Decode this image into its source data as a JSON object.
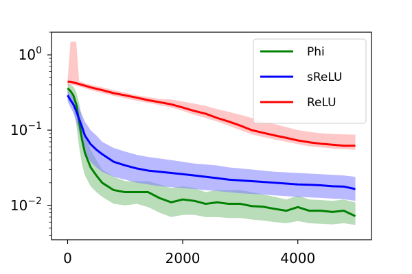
{
  "chart_data": {
    "type": "line",
    "title": "",
    "xlabel": "",
    "ylabel": "",
    "xlim": [
      -280,
      5280
    ],
    "ylim": [
      0.0035,
      2.0
    ],
    "yscale": "log",
    "grid": false,
    "legend_position": "top-right",
    "x_ticks": [
      {
        "value": 0,
        "label": "0"
      },
      {
        "value": 2000,
        "label": "2000"
      },
      {
        "value": 4000,
        "label": "4000"
      }
    ],
    "y_ticks": [
      {
        "value": 1,
        "label": "10^0",
        "base": "10",
        "exp": "0"
      },
      {
        "value": 0.1,
        "label": "10^-1",
        "base": "10",
        "exp": "−1"
      },
      {
        "value": 0.01,
        "label": "10^-2",
        "base": "10",
        "exp": "−2"
      }
    ],
    "series": [
      {
        "name": "Phi",
        "color": "#008000",
        "band_color": "#7fbf7f",
        "x": [
          0,
          50,
          100,
          150,
          200,
          250,
          300,
          400,
          500,
          600,
          800,
          1000,
          1200,
          1400,
          1600,
          1800,
          2000,
          2200,
          2400,
          2600,
          2800,
          3000,
          3200,
          3400,
          3600,
          3800,
          4000,
          4200,
          4400,
          4600,
          4800,
          5000
        ],
        "y": [
          0.36,
          0.33,
          0.29,
          0.22,
          0.13,
          0.075,
          0.05,
          0.032,
          0.025,
          0.02,
          0.016,
          0.015,
          0.015,
          0.015,
          0.0125,
          0.011,
          0.012,
          0.0115,
          0.0105,
          0.011,
          0.0105,
          0.0105,
          0.0098,
          0.0096,
          0.009,
          0.0085,
          0.0095,
          0.0085,
          0.0085,
          0.0082,
          0.0085,
          0.0072
        ],
        "lower": [
          0.3,
          0.26,
          0.2,
          0.12,
          0.06,
          0.035,
          0.025,
          0.018,
          0.015,
          0.013,
          0.0105,
          0.01,
          0.0105,
          0.0095,
          0.008,
          0.007,
          0.0075,
          0.0075,
          0.007,
          0.007,
          0.0068,
          0.0068,
          0.0065,
          0.0063,
          0.006,
          0.0058,
          0.0062,
          0.0058,
          0.0057,
          0.0056,
          0.0058,
          0.0055
        ],
        "upper": [
          0.42,
          0.4,
          0.38,
          0.32,
          0.23,
          0.14,
          0.09,
          0.055,
          0.04,
          0.03,
          0.024,
          0.021,
          0.021,
          0.021,
          0.019,
          0.017,
          0.018,
          0.017,
          0.015,
          0.016,
          0.016,
          0.016,
          0.015,
          0.014,
          0.013,
          0.012,
          0.0135,
          0.012,
          0.0118,
          0.0115,
          0.012,
          0.011
        ]
      },
      {
        "name": "sReLU",
        "color": "#0000ff",
        "band_color": "#7f7fff",
        "x": [
          0,
          50,
          100,
          150,
          200,
          250,
          300,
          400,
          500,
          600,
          800,
          1000,
          1200,
          1400,
          1600,
          1800,
          2000,
          2200,
          2400,
          2600,
          2800,
          3000,
          3200,
          3400,
          3600,
          3800,
          4000,
          4200,
          4400,
          4600,
          4800,
          5000
        ],
        "y": [
          0.29,
          0.25,
          0.22,
          0.18,
          0.14,
          0.11,
          0.085,
          0.065,
          0.055,
          0.048,
          0.038,
          0.034,
          0.031,
          0.029,
          0.028,
          0.027,
          0.026,
          0.025,
          0.024,
          0.023,
          0.022,
          0.0215,
          0.021,
          0.0205,
          0.02,
          0.0195,
          0.019,
          0.0188,
          0.0185,
          0.018,
          0.0178,
          0.0165
        ],
        "lower": [
          0.24,
          0.2,
          0.17,
          0.13,
          0.095,
          0.07,
          0.05,
          0.038,
          0.032,
          0.028,
          0.024,
          0.022,
          0.02,
          0.019,
          0.018,
          0.0175,
          0.017,
          0.0165,
          0.016,
          0.0155,
          0.015,
          0.0145,
          0.0142,
          0.014,
          0.0136,
          0.0133,
          0.013,
          0.0128,
          0.0126,
          0.0123,
          0.0121,
          0.0115
        ],
        "upper": [
          0.34,
          0.3,
          0.28,
          0.24,
          0.2,
          0.16,
          0.13,
          0.1,
          0.085,
          0.07,
          0.058,
          0.052,
          0.047,
          0.044,
          0.042,
          0.04,
          0.038,
          0.036,
          0.035,
          0.034,
          0.032,
          0.031,
          0.03,
          0.029,
          0.028,
          0.0275,
          0.027,
          0.0265,
          0.026,
          0.0255,
          0.025,
          0.024
        ]
      },
      {
        "name": "ReLU",
        "color": "#ff0000",
        "band_color": "#ff9a9a",
        "x": [
          0,
          50,
          100,
          150,
          200,
          300,
          400,
          600,
          800,
          1000,
          1200,
          1400,
          1600,
          1800,
          2000,
          2200,
          2400,
          2600,
          2800,
          3000,
          3200,
          3400,
          3600,
          3800,
          4000,
          4200,
          4400,
          4600,
          4800,
          5000
        ],
        "y": [
          0.44,
          0.44,
          0.43,
          0.42,
          0.41,
          0.39,
          0.37,
          0.34,
          0.31,
          0.29,
          0.27,
          0.25,
          0.235,
          0.22,
          0.2,
          0.18,
          0.165,
          0.145,
          0.13,
          0.115,
          0.1,
          0.092,
          0.085,
          0.079,
          0.073,
          0.069,
          0.066,
          0.064,
          0.062,
          0.062
        ],
        "lower": [
          0.39,
          0.4,
          0.4,
          0.39,
          0.38,
          0.36,
          0.34,
          0.31,
          0.285,
          0.265,
          0.245,
          0.23,
          0.215,
          0.2,
          0.18,
          0.16,
          0.145,
          0.13,
          0.115,
          0.1,
          0.088,
          0.081,
          0.075,
          0.07,
          0.065,
          0.061,
          0.059,
          0.057,
          0.056,
          0.055
        ],
        "upper": [
          0.48,
          1.5,
          1.5,
          1.5,
          0.45,
          0.42,
          0.4,
          0.37,
          0.34,
          0.315,
          0.29,
          0.275,
          0.26,
          0.255,
          0.24,
          0.225,
          0.21,
          0.19,
          0.175,
          0.16,
          0.145,
          0.13,
          0.12,
          0.11,
          0.1,
          0.095,
          0.091,
          0.089,
          0.088,
          0.087
        ]
      }
    ]
  }
}
